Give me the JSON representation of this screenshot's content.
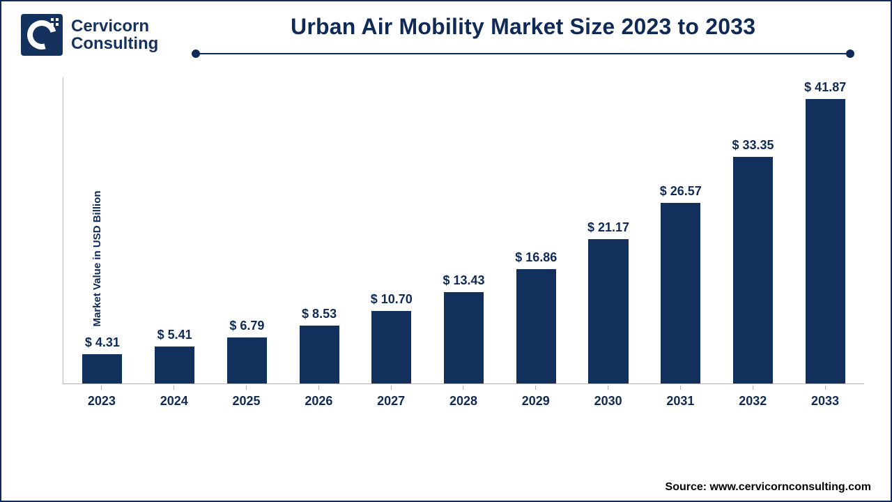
{
  "brand": {
    "name_line1": "Cervicorn",
    "name_line2": "Consulting",
    "logo_bg": "#15325f",
    "logo_fg": "#ffffff"
  },
  "chart": {
    "type": "bar",
    "title": "Urban Air Mobility Market Size 2023 to 2033",
    "title_color": "#0f2a57",
    "title_fontsize": 32,
    "ylabel": "Market Value in USD Billion",
    "ylabel_color": "#0f2a57",
    "ylabel_fontsize": 15,
    "ylim": [
      0,
      45
    ],
    "categories": [
      "2023",
      "2024",
      "2025",
      "2026",
      "2027",
      "2028",
      "2029",
      "2030",
      "2031",
      "2032",
      "2033"
    ],
    "values": [
      4.31,
      5.41,
      6.79,
      8.53,
      10.7,
      13.43,
      16.86,
      21.17,
      26.57,
      33.35,
      41.87
    ],
    "value_labels": [
      "$ 4.31",
      "$ 5.41",
      "$ 6.79",
      "$ 8.53",
      "$ 10.70",
      "$ 13.43",
      "$ 16.86",
      "$ 21.17",
      "$ 26.57",
      "$ 33.35",
      "$ 41.87"
    ],
    "bar_color": "#12305c",
    "axis_color": "#b5b5b5",
    "rule_color": "#0f2a57",
    "label_fontsize": 18,
    "xcat_fontsize": 18,
    "xcat_color": "#0f2a57",
    "background_color": "#ffffff",
    "bar_width_pct": 55
  },
  "source": {
    "prefix": "Source: ",
    "text": "www.cervicornconsulting.com",
    "color": "#000000",
    "fontsize": 16
  }
}
